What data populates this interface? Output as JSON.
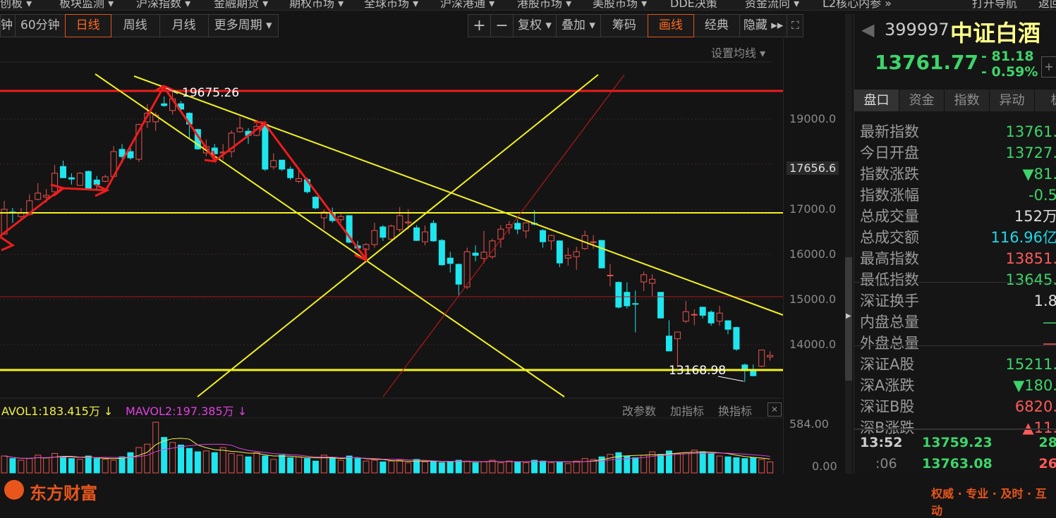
{
  "top_menu": [
    {
      "label": "创板 ▾"
    },
    {
      "label": "板块监测 ▾"
    },
    {
      "label": "沪深指数 ▾"
    },
    {
      "label": "金融期货 ▾"
    },
    {
      "label": "期权市场 ▾"
    },
    {
      "label": "全球市场 ▾"
    },
    {
      "label": "沪深港通 ▾"
    },
    {
      "label": "港股市场 ▾"
    },
    {
      "label": "美股市场 ▾"
    },
    {
      "label": "DDE决策"
    },
    {
      "label": "资金流向 ▾"
    },
    {
      "label": "L2核心内参 »"
    },
    {
      "label": "打开导航"
    },
    {
      "label": "返回"
    }
  ],
  "periods": [
    "钟",
    "60分钟",
    "日线",
    "周线",
    "月线",
    "更多周期 ▾"
  ],
  "active_period": "日线",
  "tools": {
    "zoom_in": "+",
    "zoom_out": "−",
    "fuquan": "复权 ▾",
    "overlay": "叠加 ▾",
    "chips": "筹码",
    "draw": "画线",
    "classic": "经典",
    "hide": "隐藏 ▸▸"
  },
  "chart": {
    "ma_setting": "设置均线 ▾",
    "high_label": "19675.26",
    "low_label": "13168.98",
    "y_ticks": [
      "19000.0",
      "17000.0",
      "16000.0",
      "15000.0",
      "14000.0"
    ],
    "crosshair_value": "17656.6",
    "candles_ohlc": [
      [
        16450,
        17190,
        16440,
        17000
      ],
      [
        16940,
        17030,
        16700,
        16920
      ],
      [
        16840,
        17030,
        16750,
        16920
      ],
      [
        16880,
        17330,
        16870,
        17190
      ],
      [
        17220,
        17580,
        17200,
        17360
      ],
      [
        17270,
        17450,
        17150,
        17310
      ],
      [
        17390,
        17980,
        17380,
        17800
      ],
      [
        17950,
        18080,
        17700,
        17700
      ],
      [
        17700,
        17800,
        17550,
        17670
      ],
      [
        17530,
        17830,
        17520,
        17800
      ],
      [
        17840,
        17860,
        17440,
        17450
      ],
      [
        17650,
        17740,
        17450,
        17550
      ],
      [
        17620,
        17770,
        17600,
        17720
      ],
      [
        17730,
        18400,
        17730,
        18280
      ],
      [
        18330,
        18450,
        18120,
        18170
      ],
      [
        18280,
        18420,
        18100,
        18140
      ],
      [
        18110,
        18900,
        18050,
        18880
      ],
      [
        18940,
        19330,
        18800,
        19130
      ],
      [
        18940,
        19150,
        18740,
        19090
      ],
      [
        19340,
        19500,
        19270,
        19300
      ],
      [
        19190,
        19675,
        19100,
        19450
      ],
      [
        19340,
        19400,
        19150,
        19220
      ],
      [
        19130,
        19150,
        18550,
        18890
      ],
      [
        18770,
        18780,
        18320,
        18340
      ],
      [
        18250,
        18550,
        18180,
        18390
      ],
      [
        18360,
        18450,
        18150,
        18230
      ],
      [
        18250,
        18450,
        18100,
        18270
      ],
      [
        18280,
        18750,
        18150,
        18690
      ],
      [
        18720,
        19050,
        18700,
        18800
      ],
      [
        18730,
        18800,
        18450,
        18640
      ],
      [
        18640,
        18900,
        18620,
        18840
      ],
      [
        18880,
        18900,
        17850,
        17890
      ],
      [
        17940,
        18240,
        17880,
        18080
      ],
      [
        18090,
        18100,
        17850,
        17890
      ],
      [
        17890,
        17950,
        17650,
        17700
      ],
      [
        17620,
        17900,
        17580,
        17680
      ],
      [
        17660,
        17700,
        17350,
        17390
      ],
      [
        17270,
        17290,
        17000,
        17030
      ],
      [
        16810,
        17000,
        16560,
        16940
      ],
      [
        16920,
        17040,
        16700,
        16750
      ],
      [
        16770,
        16900,
        16700,
        16840
      ],
      [
        16860,
        16870,
        16250,
        16270
      ],
      [
        16190,
        16300,
        16100,
        16140
      ],
      [
        16110,
        16250,
        15850,
        16220
      ],
      [
        16220,
        16700,
        16150,
        16530
      ],
      [
        16610,
        16650,
        16300,
        16380
      ],
      [
        16340,
        16660,
        16300,
        16630
      ],
      [
        16550,
        17050,
        16500,
        16860
      ],
      [
        16700,
        17000,
        16550,
        16720
      ],
      [
        16590,
        16650,
        16300,
        16310
      ],
      [
        16280,
        16640,
        16200,
        16500
      ],
      [
        16690,
        16760,
        16280,
        16300
      ],
      [
        16310,
        16340,
        15750,
        15770
      ],
      [
        15920,
        16060,
        15600,
        15800
      ],
      [
        15780,
        15800,
        15100,
        15340
      ],
      [
        15280,
        16150,
        15230,
        16060
      ],
      [
        16030,
        16200,
        15850,
        15980
      ],
      [
        15910,
        16520,
        15800,
        16050
      ],
      [
        15950,
        16350,
        15900,
        16300
      ],
      [
        16340,
        16650,
        16150,
        16560
      ],
      [
        16590,
        16740,
        16450,
        16660
      ],
      [
        16690,
        16780,
        16450,
        16560
      ],
      [
        16520,
        16720,
        16360,
        16700
      ],
      [
        16690,
        16980,
        16640,
        16670
      ],
      [
        16530,
        16560,
        16150,
        16280
      ],
      [
        16300,
        16440,
        16100,
        16420
      ],
      [
        16300,
        16310,
        15720,
        15810
      ],
      [
        15920,
        16150,
        15750,
        15980
      ],
      [
        15950,
        16170,
        15660,
        16060
      ],
      [
        16130,
        16530,
        16100,
        16420
      ],
      [
        16270,
        16430,
        16120,
        16280
      ],
      [
        16310,
        16320,
        15700,
        15700
      ],
      [
        15530,
        15790,
        15290,
        15540
      ],
      [
        15380,
        15400,
        14800,
        14830
      ],
      [
        15160,
        15380,
        14800,
        14860
      ],
      [
        14910,
        15200,
        14270,
        14900
      ],
      [
        15390,
        15620,
        15190,
        15550
      ],
      [
        15360,
        15560,
        15080,
        15450
      ],
      [
        15160,
        15160,
        14590,
        14590
      ],
      [
        14190,
        14540,
        13860,
        13860
      ],
      [
        14130,
        14210,
        13500,
        14280
      ],
      [
        14520,
        14970,
        14480,
        14730
      ],
      [
        14660,
        14780,
        14430,
        14670
      ],
      [
        14830,
        14840,
        14580,
        14650
      ],
      [
        14720,
        14760,
        14420,
        14480
      ],
      [
        14520,
        14860,
        14420,
        14700
      ],
      [
        14530,
        14540,
        14230,
        14340
      ],
      [
        14380,
        14400,
        13860,
        13900
      ],
      [
        13550,
        13580,
        13169,
        13420
      ],
      [
        13410,
        13560,
        13300,
        13310
      ],
      [
        13520,
        13880,
        13500,
        13880
      ],
      [
        13727,
        13851,
        13645,
        13762
      ]
    ]
  },
  "volume": {
    "mavol1": "AVOL1:183.415万 ↓",
    "mavol2": "MAVOL2:197.385万 ↓",
    "buttons": [
      "改参数",
      "加指标",
      "换指标"
    ],
    "close": "✕",
    "y_ticks": [
      "584.00",
      "0.00"
    ],
    "values": [
      200,
      170,
      150,
      170,
      210,
      180,
      230,
      190,
      170,
      160,
      200,
      170,
      160,
      150,
      190,
      240,
      300,
      340,
      600,
      420,
      360,
      330,
      290,
      250,
      260,
      240,
      300,
      230,
      210,
      190,
      240,
      200,
      160,
      210,
      180,
      190,
      170,
      140,
      210,
      180,
      150,
      200,
      170,
      140,
      150,
      130,
      140,
      150,
      120,
      160,
      130,
      140,
      120,
      130,
      150,
      140,
      120,
      130,
      150,
      120,
      140,
      130,
      120,
      150,
      140,
      120,
      130,
      110,
      140,
      170,
      160,
      190,
      220,
      240,
      200,
      180,
      210,
      250,
      220,
      260,
      230,
      240,
      270,
      250,
      230,
      200,
      190,
      180,
      170,
      180,
      160,
      130
    ],
    "ma_colors": {
      "mavol1": "#f0f04a",
      "mavol2": "#e040e0"
    }
  },
  "quote": {
    "code": "399997",
    "name": "中证白酒",
    "price": "13761.77",
    "change": "- 81.18",
    "pct": "- 0.59%"
  },
  "panel_tabs": [
    "盘口",
    "资金",
    "指数",
    "异动",
    "板"
  ],
  "panel_rows": [
    {
      "k": "最新指数",
      "v": "13761.",
      "c": "#3ed46a"
    },
    {
      "k": "今日开盘",
      "v": "13727.",
      "c": "#3ed46a"
    },
    {
      "k": "指数涨跌",
      "v": "▼81.",
      "c": "#3ed46a"
    },
    {
      "k": "指数涨幅",
      "v": "-0.5",
      "c": "#3ed46a"
    },
    {
      "k": "总成交量",
      "v": "152万",
      "c": "#dddddd"
    },
    {
      "k": "总成交额",
      "v": "116.96亿",
      "c": "#1ed8e8"
    },
    {
      "k": "最高指数",
      "v": "13851.",
      "c": "#ff5a5a"
    },
    {
      "k": "最低指数",
      "v": "13645.",
      "c": "#3ed46a"
    },
    {
      "k": "深证换手",
      "v": "1.8",
      "c": "#dddddd"
    },
    {
      "k": "内盘总量",
      "v": "—",
      "c": "#3ed46a"
    },
    {
      "k": "外盘总量",
      "v": "—",
      "c": "#ff5a5a"
    },
    {
      "k": "深证A股",
      "v": "15211.",
      "c": "#3ed46a"
    },
    {
      "k": "深A涨跌",
      "v": "▼180.",
      "c": "#3ed46a"
    },
    {
      "k": "深证B股",
      "v": "6820.",
      "c": "#ff5a5a"
    },
    {
      "k": "深B涨跌",
      "v": "▲11.",
      "c": "#ff5a5a"
    }
  ],
  "ticks": [
    {
      "time": "13:52",
      "price": "13759.23",
      "vol": "28"
    },
    {
      "time": ":06",
      "price": "13763.08",
      "vol": "26"
    }
  ],
  "footer": {
    "logo": "东方财富",
    "slogan": "权威 · 专业 · 及时 · 互动"
  },
  "colors": {
    "up": "#e8534f",
    "down": "#1ee6ee",
    "accent": "#ff6a1f"
  }
}
